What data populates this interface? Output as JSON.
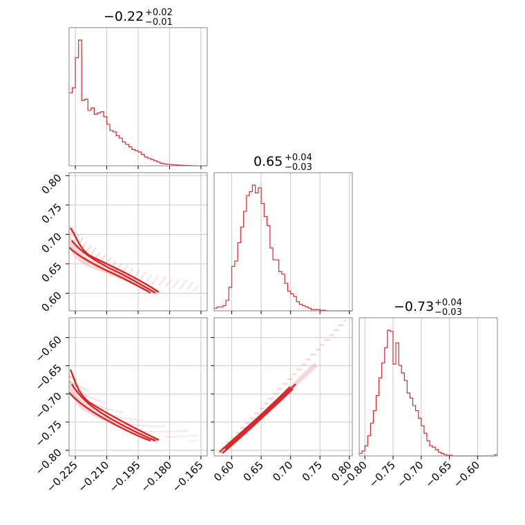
{
  "chart_data": {
    "type": "corner",
    "color": "#d62728",
    "grid": true,
    "parameters": [
      {
        "title": "−0.22",
        "title_plus": "+0.02",
        "title_minus": "−0.01",
        "range": [
          -0.228,
          -0.162
        ],
        "ticks": [
          -0.225,
          -0.21,
          -0.195,
          -0.18,
          -0.165
        ],
        "tick_labels": [
          "−0.225",
          "−0.210",
          "−0.195",
          "−0.180",
          "−0.165"
        ],
        "hist_edges_start": -0.228,
        "hist_bin_width": 0.0015,
        "hist_counts": [
          0.58,
          0.62,
          0.86,
          1.0,
          0.52,
          0.53,
          0.44,
          0.46,
          0.41,
          0.42,
          0.43,
          0.39,
          0.33,
          0.28,
          0.27,
          0.24,
          0.22,
          0.19,
          0.17,
          0.15,
          0.13,
          0.12,
          0.11,
          0.09,
          0.07,
          0.06,
          0.05,
          0.04,
          0.03,
          0.02,
          0.015,
          0.012,
          0.01,
          0.008,
          0.006,
          0.005,
          0.004,
          0.003,
          0.002,
          0.001,
          0.0,
          0.0,
          0.0,
          0.0
        ]
      },
      {
        "title": "0.65",
        "title_plus": "+0.04",
        "title_minus": "−0.03",
        "range": [
          0.57,
          0.805
        ],
        "ticks": [
          0.6,
          0.65,
          0.7,
          0.75,
          0.8
        ],
        "tick_labels": [
          "0.60",
          "0.65",
          "0.70",
          "0.75",
          "0.80"
        ],
        "hist_edges_start": 0.57,
        "hist_bin_width": 0.005,
        "hist_counts": [
          0.02,
          0.03,
          0.03,
          0.04,
          0.08,
          0.18,
          0.34,
          0.38,
          0.52,
          0.64,
          0.76,
          0.88,
          0.91,
          0.96,
          0.9,
          0.94,
          0.82,
          0.72,
          0.65,
          0.48,
          0.39,
          0.39,
          0.3,
          0.28,
          0.21,
          0.15,
          0.13,
          0.11,
          0.07,
          0.05,
          0.04,
          0.03,
          0.02,
          0.01,
          0.01,
          0.01,
          0.005,
          0.005,
          0.0,
          0.0,
          0.0,
          0.0,
          0.0,
          0.0,
          0.0,
          0.0,
          0.0
        ]
      },
      {
        "title": "−0.73",
        "title_plus": "+0.04",
        "title_minus": "−0.03",
        "range": [
          -0.81,
          -0.565
        ],
        "ticks": [
          -0.8,
          -0.75,
          -0.7,
          -0.65,
          -0.6
        ],
        "tick_labels": [
          "−0.80",
          "−0.75",
          "−0.70",
          "−0.65",
          "−0.60"
        ],
        "hist_edges_start": -0.81,
        "hist_bin_width": 0.005,
        "hist_counts": [
          0.02,
          0.04,
          0.08,
          0.16,
          0.26,
          0.36,
          0.48,
          0.62,
          0.74,
          0.86,
          1.0,
          0.99,
          0.73,
          0.9,
          0.72,
          0.66,
          0.6,
          0.5,
          0.46,
          0.4,
          0.36,
          0.3,
          0.24,
          0.18,
          0.12,
          0.08,
          0.07,
          0.05,
          0.03,
          0.02,
          0.01,
          0.005,
          0.005,
          0.0,
          0.0,
          0.0,
          0.0,
          0.0,
          0.0,
          0.0,
          0.0,
          0.0,
          0.0,
          0.0,
          0.0,
          0.0,
          0.0,
          0.0,
          0.01
        ]
      }
    ]
  }
}
